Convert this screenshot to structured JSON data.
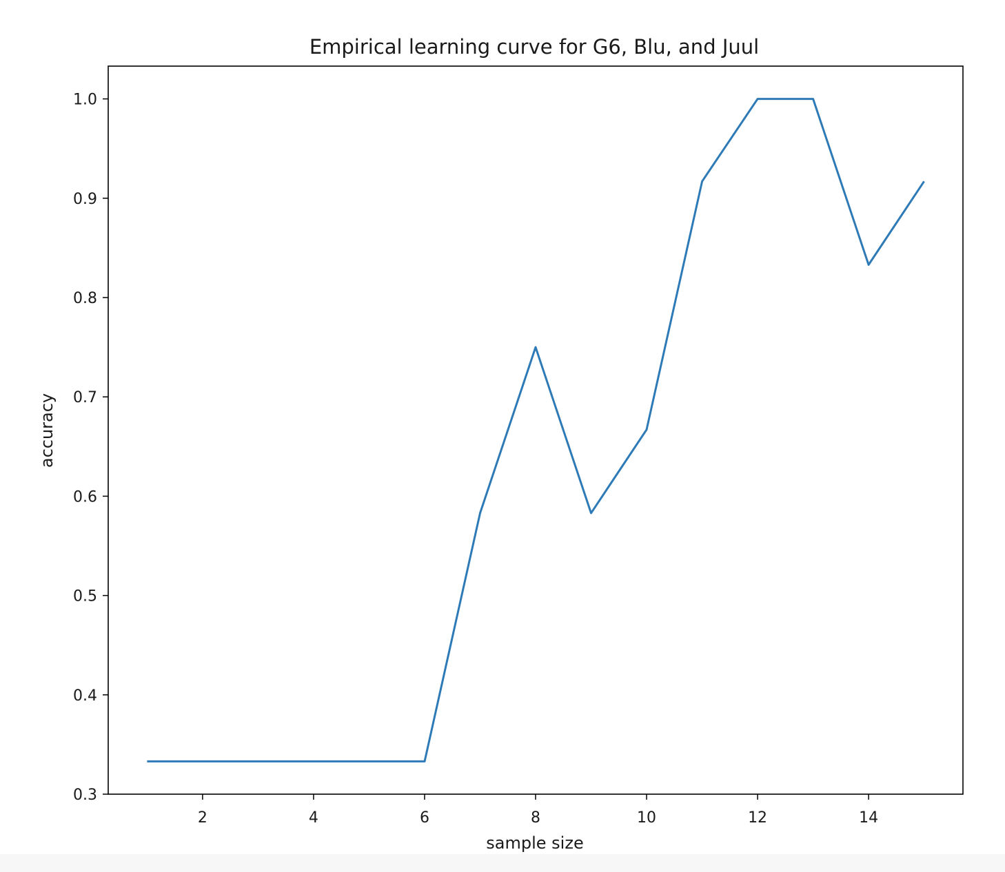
{
  "chart_data": {
    "type": "line",
    "title": "Empirical learning curve for G6, Blu, and Juul",
    "xlabel": "sample size",
    "ylabel": "accuracy",
    "xlim": [
      0.3,
      15.7
    ],
    "ylim": [
      0.3,
      1.033
    ],
    "x_ticks": [
      2,
      4,
      6,
      8,
      10,
      12,
      14
    ],
    "y_ticks": [
      0.3,
      0.4,
      0.5,
      0.6,
      0.7,
      0.8,
      0.9,
      1.0
    ],
    "y_tick_labels": [
      "0.3",
      "0.4",
      "0.5",
      "0.6",
      "0.7",
      "0.8",
      "0.9",
      "1.0"
    ],
    "grid": false,
    "legend": "none",
    "series": [
      {
        "color": "#2e7ab6",
        "x": [
          1,
          2,
          3,
          4,
          5,
          6,
          7,
          8,
          9,
          10,
          11,
          12,
          13,
          14,
          15
        ],
        "y": [
          0.333,
          0.333,
          0.333,
          0.333,
          0.333,
          0.333,
          0.583,
          0.75,
          0.583,
          0.667,
          0.917,
          1.0,
          1.0,
          0.833,
          0.917
        ]
      }
    ]
  }
}
